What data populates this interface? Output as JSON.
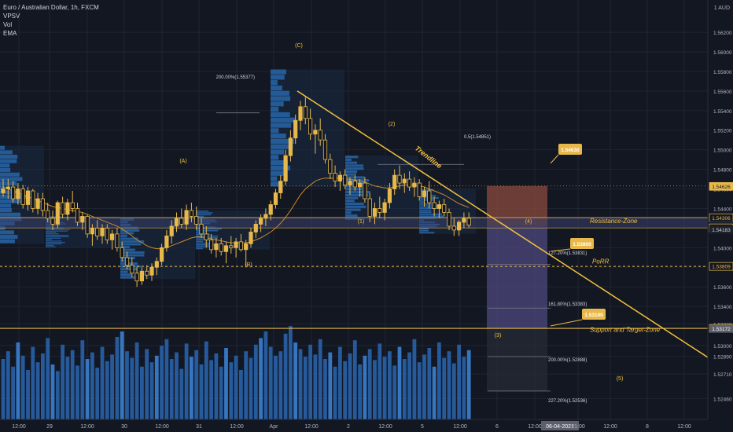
{
  "legend": {
    "title": "Euro / Australian Dollar, 1h, FXCM",
    "indicators": [
      "VPSV",
      "Vol",
      "EMA"
    ]
  },
  "colors": {
    "background": "#131722",
    "grid": "#1f2433",
    "candle": "#e8b94a",
    "ema": "#c98a28",
    "volume": "#2962a8",
    "volume_highlight": "#3b7fd0",
    "vp_bar": "#2a6fb8",
    "vp_box": "#1a2a44",
    "level_line": "#e8b94a",
    "trendline": "#f2c13c",
    "red_zone": "#8b4a3e",
    "purple_zone": "#4e4a7e",
    "grey_zone": "#2a2e39",
    "fib_line": "#787b86",
    "axis_text": "#b2b5be"
  },
  "chart_data": {
    "type": "candlestick",
    "symbol": "Euro / Australian Dollar",
    "timeframe": "1h",
    "source": "FXCM",
    "y_axis_unit": "1 AUD",
    "y_ticks": [
      1.5246,
      1.5271,
      1.5289,
      1.53,
      1.5322,
      1.534,
      1.536,
      1.538,
      1.54,
      1.542,
      1.544,
      1.546,
      1.548,
      1.55,
      1.552,
      1.554,
      1.556,
      1.558,
      1.56,
      1.562
    ],
    "y_tick_labels": [
      "1.52460",
      "1.52710",
      "1.52890",
      "1.53000",
      "1.53220",
      "1.53400",
      "1.53600",
      "1.53800",
      "1.54000",
      "1.54200",
      "1.54400",
      "1.54600",
      "1.54800",
      "1.55000",
      "1.55200",
      "1.55400",
      "1.55600",
      "1.55800",
      "1.56000",
      "1.56200"
    ],
    "x_ticks": [
      "12:00",
      "29",
      "12:00",
      "30",
      "12:00",
      "31",
      "12:00",
      "Apr",
      "12:00",
      "2",
      "12:00",
      "5",
      "12:00",
      "6",
      "12:00",
      "06-04-2021",
      "21:00",
      "12:00",
      "8",
      "12:00"
    ],
    "price_labels": [
      {
        "text": "1.54626",
        "value": 1.54626,
        "style": "gold"
      },
      {
        "text": "1.54306",
        "value": 1.54306,
        "style": "outline"
      },
      {
        "text": "1.54228",
        "value": 1.54228,
        "style": "dark"
      },
      {
        "text": "21:21",
        "value": 1.54195,
        "style": "dark"
      },
      {
        "text": "1.54202",
        "value": 1.54202,
        "style": "outline2"
      },
      {
        "text": "1.54183",
        "value": 1.54183,
        "style": "dark"
      },
      {
        "text": "1.53809",
        "value": 1.53809,
        "style": "outline"
      },
      {
        "text": "1.53176",
        "value": 1.53176,
        "style": "outline"
      },
      {
        "text": "1.53172",
        "value": 1.53172,
        "style": "grey"
      }
    ],
    "levels": [
      {
        "label": "Resistance-Zone",
        "top": 1.54306,
        "bottom": 1.54202
      },
      {
        "label": "PoRR",
        "value": 1.53809
      },
      {
        "label": "Support and Target-Zone",
        "value": 1.53176
      }
    ],
    "wave_labels": [
      "(A)",
      "(B)",
      "(C)",
      "(1)",
      "(2)",
      "(3)",
      "(4)",
      "(5)"
    ],
    "fib_labels": [
      "200.00%(1.55377)",
      "0.5(1.54851)",
      "127.20%(1.53831)",
      "161.80%(1.53383)",
      "200.00%(1.52888)",
      "227.20%(1.52536)"
    ],
    "callouts": [
      "1.54630",
      "1.53800",
      "1.53100"
    ],
    "trendline_label": "Trendline",
    "candles": [
      [
        1.5456,
        1.547,
        1.5452,
        1.546
      ],
      [
        1.546,
        1.547,
        1.545,
        1.5462
      ],
      [
        1.5462,
        1.5468,
        1.5446,
        1.545
      ],
      [
        1.545,
        1.5466,
        1.5444,
        1.546
      ],
      [
        1.546,
        1.5464,
        1.544,
        1.5444
      ],
      [
        1.5444,
        1.5462,
        1.5438,
        1.5458
      ],
      [
        1.5458,
        1.546,
        1.5436,
        1.544
      ],
      [
        1.544,
        1.5456,
        1.5434,
        1.545
      ],
      [
        1.545,
        1.5456,
        1.5432,
        1.5438
      ],
      [
        1.5438,
        1.5446,
        1.5426,
        1.543
      ],
      [
        1.543,
        1.5438,
        1.5418,
        1.5424
      ],
      [
        1.5424,
        1.5448,
        1.542,
        1.5446
      ],
      [
        1.5446,
        1.5452,
        1.543,
        1.5434
      ],
      [
        1.5434,
        1.545,
        1.5428,
        1.5446
      ],
      [
        1.5446,
        1.5458,
        1.5436,
        1.544
      ],
      [
        1.544,
        1.5446,
        1.5422,
        1.5426
      ],
      [
        1.5426,
        1.5436,
        1.5418,
        1.5432
      ],
      [
        1.5432,
        1.5434,
        1.541,
        1.5414
      ],
      [
        1.5414,
        1.5424,
        1.5402,
        1.542
      ],
      [
        1.542,
        1.5428,
        1.5408,
        1.5412
      ],
      [
        1.5412,
        1.5424,
        1.5404,
        1.542
      ],
      [
        1.542,
        1.5424,
        1.5404,
        1.5408
      ],
      [
        1.5408,
        1.5418,
        1.5398,
        1.5414
      ],
      [
        1.5414,
        1.542,
        1.5396,
        1.54
      ],
      [
        1.54,
        1.5406,
        1.5386,
        1.539
      ],
      [
        1.539,
        1.5396,
        1.5378,
        1.5382
      ],
      [
        1.5382,
        1.539,
        1.537,
        1.5374
      ],
      [
        1.5374,
        1.538,
        1.536,
        1.5366
      ],
      [
        1.5366,
        1.538,
        1.5362,
        1.5376
      ],
      [
        1.5376,
        1.5382,
        1.5368,
        1.5372
      ],
      [
        1.5372,
        1.5384,
        1.5366,
        1.538
      ],
      [
        1.538,
        1.539,
        1.5372,
        1.5386
      ],
      [
        1.5386,
        1.5404,
        1.5382,
        1.54
      ],
      [
        1.54,
        1.5418,
        1.5396,
        1.5412
      ],
      [
        1.5412,
        1.5428,
        1.5404,
        1.5422
      ],
      [
        1.5422,
        1.5436,
        1.5416,
        1.543
      ],
      [
        1.543,
        1.544,
        1.542,
        1.5424
      ],
      [
        1.5424,
        1.5444,
        1.5418,
        1.5438
      ],
      [
        1.5438,
        1.5446,
        1.5426,
        1.5432
      ],
      [
        1.5432,
        1.5442,
        1.5418,
        1.5424
      ],
      [
        1.5424,
        1.543,
        1.541,
        1.5414
      ],
      [
        1.5414,
        1.5422,
        1.54,
        1.5408
      ],
      [
        1.5408,
        1.5414,
        1.5394,
        1.5398
      ],
      [
        1.5398,
        1.541,
        1.539,
        1.5404
      ],
      [
        1.5404,
        1.541,
        1.5392,
        1.5396
      ],
      [
        1.5396,
        1.5406,
        1.5384,
        1.5402
      ],
      [
        1.5402,
        1.5412,
        1.5394,
        1.54
      ],
      [
        1.54,
        1.541,
        1.539,
        1.5406
      ],
      [
        1.5406,
        1.5414,
        1.5396,
        1.5398
      ],
      [
        1.5398,
        1.5408,
        1.538,
        1.5404
      ],
      [
        1.5404,
        1.542,
        1.54,
        1.5416
      ],
      [
        1.5416,
        1.5428,
        1.541,
        1.5424
      ],
      [
        1.5424,
        1.5434,
        1.5416,
        1.543
      ],
      [
        1.543,
        1.544,
        1.5422,
        1.5434
      ],
      [
        1.5434,
        1.5448,
        1.5428,
        1.5444
      ],
      [
        1.5444,
        1.546,
        1.544,
        1.5456
      ],
      [
        1.5456,
        1.5474,
        1.545,
        1.5468
      ],
      [
        1.5468,
        1.55,
        1.5464,
        1.5494
      ],
      [
        1.5494,
        1.552,
        1.5488,
        1.5512
      ],
      [
        1.5512,
        1.5536,
        1.5506,
        1.553
      ],
      [
        1.553,
        1.555,
        1.552,
        1.5544
      ],
      [
        1.5544,
        1.5554,
        1.5526,
        1.5532
      ],
      [
        1.5532,
        1.5542,
        1.551,
        1.5516
      ],
      [
        1.5516,
        1.5526,
        1.5496,
        1.552
      ],
      [
        1.552,
        1.5532,
        1.5504,
        1.551
      ],
      [
        1.551,
        1.5516,
        1.5486,
        1.549
      ],
      [
        1.549,
        1.5496,
        1.547,
        1.5476
      ],
      [
        1.5476,
        1.5484,
        1.5462,
        1.5468
      ],
      [
        1.5468,
        1.5478,
        1.5458,
        1.5474
      ],
      [
        1.5474,
        1.548,
        1.546,
        1.5464
      ],
      [
        1.5464,
        1.5472,
        1.5454,
        1.5468
      ],
      [
        1.5468,
        1.5476,
        1.5458,
        1.5462
      ],
      [
        1.5462,
        1.547,
        1.5452,
        1.5466
      ],
      [
        1.5466,
        1.5472,
        1.5446,
        1.545
      ],
      [
        1.545,
        1.5456,
        1.5426,
        1.5432
      ],
      [
        1.5432,
        1.5446,
        1.5424,
        1.544
      ],
      [
        1.544,
        1.5452,
        1.543,
        1.5436
      ],
      [
        1.5436,
        1.545,
        1.5428,
        1.5446
      ],
      [
        1.5446,
        1.5466,
        1.544,
        1.546
      ],
      [
        1.546,
        1.548,
        1.5454,
        1.5474
      ],
      [
        1.5474,
        1.5484,
        1.546,
        1.5466
      ],
      [
        1.5466,
        1.5476,
        1.5456,
        1.547
      ],
      [
        1.547,
        1.5478,
        1.5458,
        1.5462
      ],
      [
        1.5462,
        1.5472,
        1.5452,
        1.5466
      ],
      [
        1.5466,
        1.547,
        1.5448,
        1.5452
      ],
      [
        1.5452,
        1.5462,
        1.5442,
        1.5458
      ],
      [
        1.5458,
        1.5468,
        1.544,
        1.5446
      ],
      [
        1.5446,
        1.5452,
        1.5432,
        1.544
      ],
      [
        1.544,
        1.5448,
        1.543,
        1.5444
      ],
      [
        1.5444,
        1.545,
        1.5432,
        1.5436
      ],
      [
        1.5436,
        1.544,
        1.5418,
        1.5422
      ],
      [
        1.5422,
        1.543,
        1.5412,
        1.5418
      ],
      [
        1.5418,
        1.5428,
        1.5412,
        1.5426
      ],
      [
        1.5426,
        1.5436,
        1.542,
        1.543
      ],
      [
        1.543,
        1.5436,
        1.542,
        1.5423
      ]
    ],
    "ema": [
      1.5462,
      1.546,
      1.5458,
      1.5456,
      1.5454,
      1.5452,
      1.545,
      1.5448,
      1.5446,
      1.5444,
      1.5442,
      1.5441,
      1.544,
      1.5439,
      1.5438,
      1.5437,
      1.5436,
      1.5434,
      1.5432,
      1.543,
      1.5428,
      1.5426,
      1.5424,
      1.5422,
      1.5419,
      1.5416,
      1.5412,
      1.5408,
      1.5405,
      1.5402,
      1.54,
      1.5399,
      1.5399,
      1.54,
      1.5402,
      1.5404,
      1.5406,
      1.5408,
      1.541,
      1.5411,
      1.5411,
      1.541,
      1.5409,
      1.5408,
      1.5407,
      1.5406,
      1.5405,
      1.5405,
      1.5405,
      1.5405,
      1.5406,
      1.5408,
      1.541,
      1.5413,
      1.5416,
      1.542,
      1.5425,
      1.5431,
      1.5438,
      1.5446,
      1.5454,
      1.546,
      1.5464,
      1.5468,
      1.547,
      1.5471,
      1.5471,
      1.5471,
      1.5471,
      1.547,
      1.547,
      1.5469,
      1.5468,
      1.5467,
      1.5465,
      1.5463,
      1.5462,
      1.5461,
      1.5461,
      1.5462,
      1.5463,
      1.5464,
      1.5464,
      1.5464,
      1.5463,
      1.5462,
      1.546,
      1.5458,
      1.5456,
      1.5454,
      1.5451,
      1.5448,
      1.5445,
      1.5443,
      1.5441
    ],
    "volume": [
      0.55,
      0.62,
      0.48,
      0.7,
      0.58,
      0.45,
      0.66,
      0.52,
      0.6,
      0.74,
      0.5,
      0.44,
      0.68,
      0.57,
      0.63,
      0.49,
      0.72,
      0.55,
      0.61,
      0.47,
      0.66,
      0.53,
      0.59,
      0.75,
      0.8,
      0.62,
      0.56,
      0.7,
      0.48,
      0.64,
      0.52,
      0.58,
      0.67,
      0.73,
      0.55,
      0.61,
      0.46,
      0.69,
      0.57,
      0.63,
      0.5,
      0.71,
      0.54,
      0.6,
      0.48,
      0.65,
      0.52,
      0.58,
      0.45,
      0.62,
      0.56,
      0.68,
      0.74,
      0.8,
      0.66,
      0.58,
      0.62,
      0.78,
      0.85,
      0.7,
      0.64,
      0.57,
      0.68,
      0.59,
      0.73,
      0.55,
      0.61,
      0.48,
      0.66,
      0.53,
      0.6,
      0.72,
      0.5,
      0.58,
      0.64,
      0.54,
      0.69,
      0.57,
      0.62,
      0.49,
      0.66,
      0.55,
      0.61,
      0.73,
      0.52,
      0.59,
      0.65,
      0.48,
      0.7,
      0.56,
      0.62,
      0.51,
      0.68,
      0.57,
      0.63
    ]
  }
}
